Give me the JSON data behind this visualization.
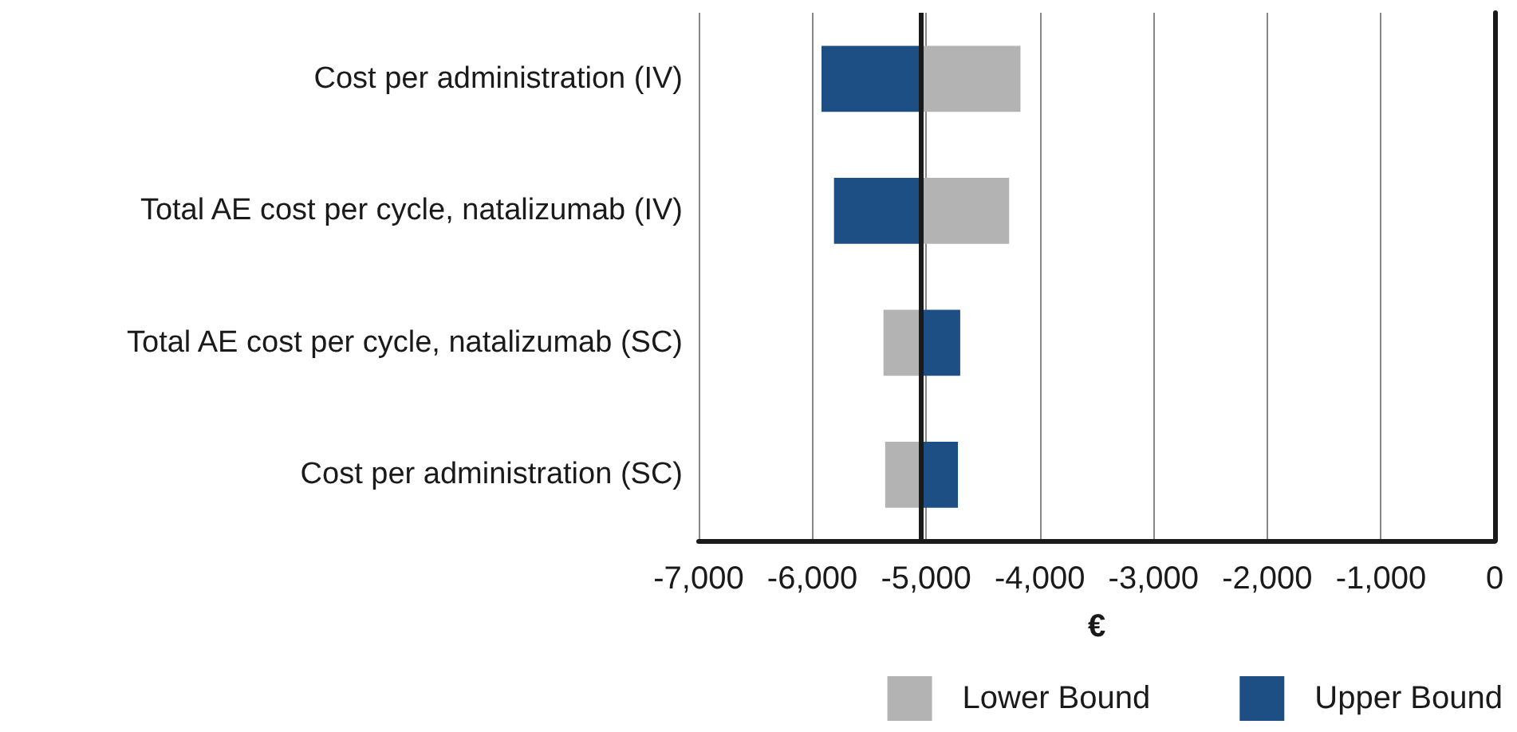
{
  "chart_data": {
    "type": "bar",
    "orientation": "horizontal",
    "xlabel": "€",
    "categories": [
      "Cost per administration (IV)",
      "Total AE cost per cycle, natalizumab (IV)",
      "Total AE cost per cycle, natalizumab (SC)",
      "Cost per administration (SC)"
    ],
    "series": [
      {
        "name": "Lower Bound",
        "color": "#b3b3b3",
        "base": [
          -5040,
          -5040,
          -5375,
          -5360
        ],
        "values": [
          870,
          770,
          335,
          320
        ]
      },
      {
        "name": "Upper Bound",
        "color": "#1d4f85",
        "base": [
          -5920,
          -5810,
          -5040,
          -5040
        ],
        "values": [
          880,
          770,
          340,
          320
        ]
      }
    ],
    "xlim": [
      -7000,
      0
    ],
    "xticks": [
      {
        "value": -7000,
        "label": "-7,000"
      },
      {
        "value": -6000,
        "label": "-6,000"
      },
      {
        "value": -5000,
        "label": "-5,000"
      },
      {
        "value": -4000,
        "label": "-4,000"
      },
      {
        "value": -3000,
        "label": "-3,000"
      },
      {
        "value": -2000,
        "label": "-2,000"
      },
      {
        "value": -1000,
        "label": "-1,000"
      },
      0
    ],
    "ref_lines": [
      {
        "axis": "x",
        "value": -5040,
        "label": null,
        "color": "#1a1a1a"
      }
    ],
    "grid": "x",
    "legend": "bottom right"
  }
}
